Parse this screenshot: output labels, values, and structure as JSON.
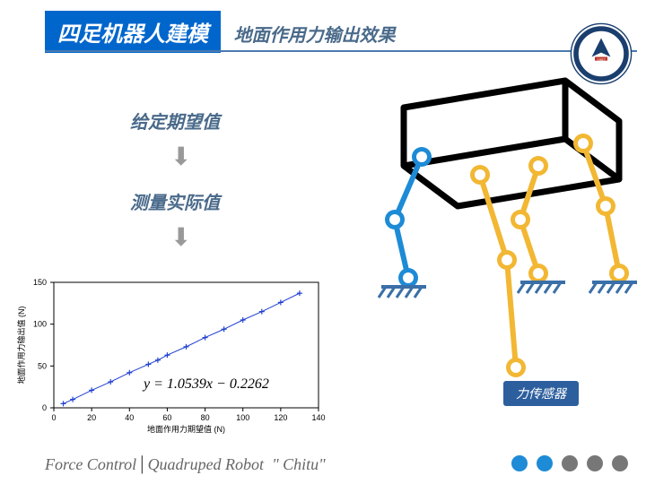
{
  "header": {
    "title": "四足机器人建模",
    "subtitle": "地面作用力输出效果",
    "title_bg": "#0066cc",
    "line_color": "#4a7ab0"
  },
  "logo": {
    "name": "浙江大学",
    "name_en": "ZHEJIANG UNIVERSITY",
    "year": "1897",
    "outer_ring": "#1a3e6e",
    "inner_bg": "#ffffff",
    "emblem": "#1a3e6e"
  },
  "flow": {
    "step1": "给定期望值",
    "step2": "测量实际值",
    "text_color": "#4a6a8a",
    "arrow_color": "#999999"
  },
  "chart": {
    "type": "scatter-line",
    "xlabel": "地面作用力期望值 (N)",
    "ylabel": "地面作用力输出值 (N)",
    "xlim": [
      0,
      140
    ],
    "xtick_step": 20,
    "ylim": [
      0,
      150
    ],
    "ytick_step": 50,
    "equation": "y = 1.0539x − 0.2262",
    "points_x": [
      5,
      10,
      20,
      30,
      40,
      50,
      55,
      60,
      70,
      80,
      90,
      100,
      110,
      120,
      130
    ],
    "points_y": [
      5,
      10,
      21,
      31,
      42,
      52,
      57,
      63,
      73,
      84,
      94,
      105,
      115,
      126,
      137
    ],
    "marker_color": "#2040d0",
    "line_color": "#2040d0",
    "axis_color": "#000000",
    "label_fontsize": 9,
    "tick_fontsize": 9
  },
  "robot": {
    "body_outline": "#000000",
    "body_fill": "#ffffff",
    "leg_color_front": "#1d8bd6",
    "leg_color_back": "#f2b733",
    "ground_color": "#3a6fa8",
    "joint_radius": 11,
    "stroke_width": 6
  },
  "sensor": {
    "label": "力传感器",
    "bg": "#2d5f9e",
    "text_color": "#ffffff"
  },
  "footer": {
    "text_left": "Force Control",
    "text_mid": "Quadruped Robot",
    "text_right": "\" Chitu\"",
    "dot_colors": [
      "#1d8bd6",
      "#1d8bd6",
      "#777777",
      "#777777",
      "#777777"
    ]
  }
}
